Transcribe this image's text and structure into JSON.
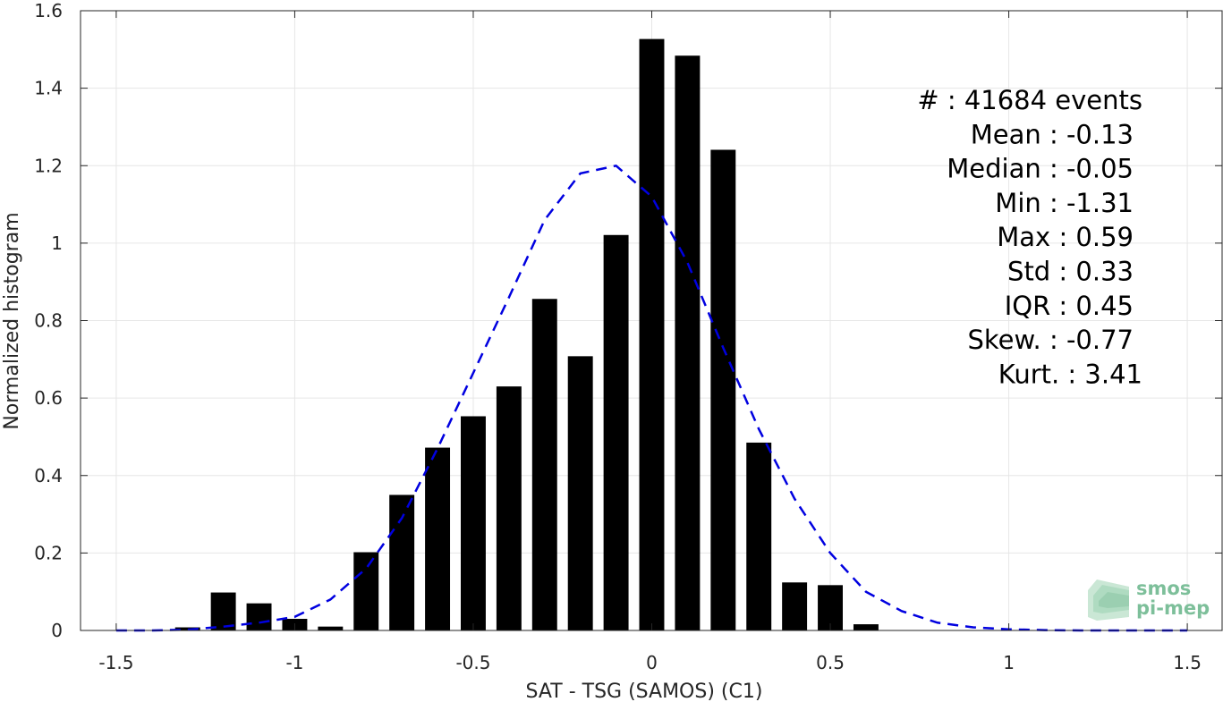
{
  "chart_data": {
    "type": "bar",
    "title": "",
    "xlabel": "SAT - TSG (SAMOS) (C1)",
    "ylabel": "Normalized histogram",
    "xlim": [
      -1.6,
      1.6
    ],
    "ylim": [
      0,
      1.6
    ],
    "xticks": [
      -1.5,
      -1,
      -0.5,
      0,
      0.5,
      1,
      1.5
    ],
    "xtick_labels": [
      "-1.5",
      "-1",
      "-0.5",
      "0",
      "0.5",
      "1",
      "1.5"
    ],
    "yticks": [
      0,
      0.2,
      0.4,
      0.6,
      0.8,
      1,
      1.2,
      1.4,
      1.6
    ],
    "ytick_labels": [
      "0",
      "0.2",
      "0.4",
      "0.6",
      "0.8",
      "1",
      "1.2",
      "1.4",
      "1.6"
    ],
    "grid": true,
    "bar_width": 0.07,
    "bar_color": "#000000",
    "bars": {
      "x": [
        -1.3,
        -1.2,
        -1.1,
        -1.0,
        -0.9,
        -0.8,
        -0.7,
        -0.6,
        -0.5,
        -0.4,
        -0.3,
        -0.2,
        -0.1,
        0.0,
        0.1,
        0.2,
        0.3,
        0.4,
        0.5,
        0.6
      ],
      "values": [
        0.008,
        0.098,
        0.07,
        0.03,
        0.01,
        0.202,
        0.35,
        0.472,
        0.553,
        0.63,
        0.856,
        0.708,
        1.021,
        1.527,
        1.484,
        1.241,
        0.485,
        0.124,
        0.117,
        0.016
      ]
    },
    "fit_curve": {
      "style": "dashed",
      "color": "#0000e0",
      "x": [
        -1.5,
        -1.4,
        -1.3,
        -1.2,
        -1.1,
        -1.0,
        -0.9,
        -0.8,
        -0.7,
        -0.6,
        -0.5,
        -0.4,
        -0.3,
        -0.2,
        -0.1,
        0.0,
        0.1,
        0.2,
        0.3,
        0.4,
        0.5,
        0.6,
        0.7,
        0.8,
        0.9,
        1.0,
        1.1,
        1.2,
        1.3,
        1.4,
        1.5
      ],
      "y": [
        0.0,
        0.0,
        0.002,
        0.01,
        0.02,
        0.035,
        0.08,
        0.16,
        0.29,
        0.47,
        0.665,
        0.86,
        1.06,
        1.18,
        1.2,
        1.12,
        0.95,
        0.73,
        0.52,
        0.34,
        0.2,
        0.1,
        0.05,
        0.02,
        0.008,
        0.003,
        0.001,
        0.0,
        0.0,
        0.0,
        0.0
      ]
    },
    "stats": [
      "#  : 41684 events",
      "Mean : -0.13",
      "Median : -0.05",
      "Min : -1.31",
      "Max : 0.59",
      "Std : 0.33",
      "IQR : 0.45",
      "Skew. : -0.77",
      "Kurt. : 3.41"
    ]
  },
  "logo": {
    "line1": "smos",
    "line2": "pi-mep"
  }
}
